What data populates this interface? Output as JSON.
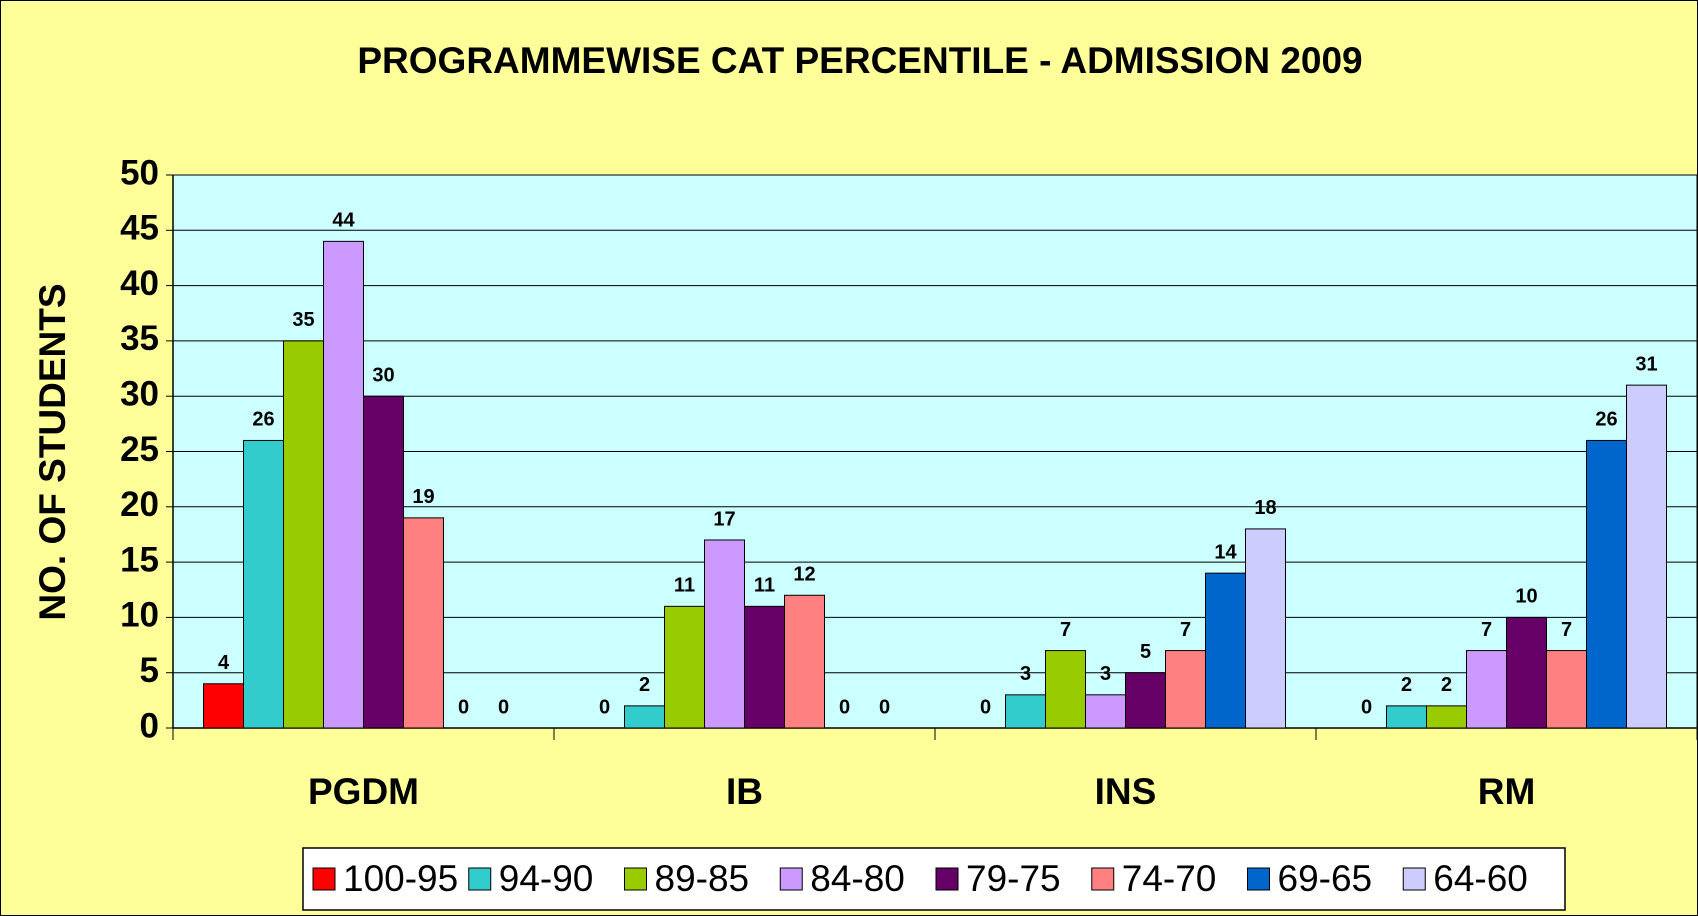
{
  "chart_data": {
    "type": "bar",
    "title": "PROGRAMMEWISE CAT PERCENTILE - ADMISSION 2009",
    "y_label": "NO. OF STUDENTS",
    "categories": [
      "PGDM",
      "IB",
      "INS",
      "RM"
    ],
    "series": [
      {
        "name": "100-95",
        "color": "#ff0000",
        "values": [
          4,
          0,
          0,
          0
        ]
      },
      {
        "name": "94-90",
        "color": "#33cccc",
        "values": [
          26,
          2,
          3,
          2
        ]
      },
      {
        "name": "89-85",
        "color": "#99cc00",
        "values": [
          35,
          11,
          7,
          2
        ]
      },
      {
        "name": "84-80",
        "color": "#cc99ff",
        "values": [
          44,
          17,
          3,
          7
        ]
      },
      {
        "name": "79-75",
        "color": "#660066",
        "values": [
          30,
          11,
          5,
          10
        ]
      },
      {
        "name": "74-70",
        "color": "#ff8080",
        "values": [
          19,
          12,
          7,
          7
        ]
      },
      {
        "name": "69-65",
        "color": "#0066cc",
        "values": [
          0,
          0,
          14,
          26
        ]
      },
      {
        "name": "64-60",
        "color": "#ccccff",
        "values": [
          0,
          0,
          18,
          31
        ]
      }
    ],
    "ylim": [
      0,
      50
    ],
    "yticks": [
      0,
      5,
      10,
      15,
      20,
      25,
      30,
      35,
      40,
      45,
      50
    ],
    "grid": true,
    "legend": "bottom"
  }
}
